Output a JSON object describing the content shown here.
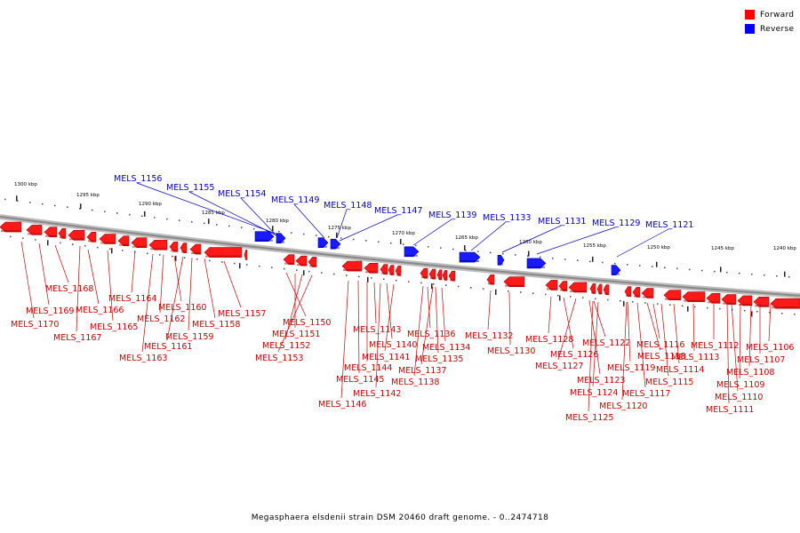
{
  "caption": "Megasphaera elsdenii strain DSM 20460 draft genome. - 0..2474718",
  "legend": [
    {
      "label": "Forward",
      "color": "#ff0000"
    },
    {
      "label": "Reverse",
      "color": "#0000ff"
    }
  ],
  "colors": {
    "forward_label": "#cc0000",
    "reverse_label": "#0000cc",
    "backbone": "#888888"
  },
  "scale_ticks": [
    "1300 kbp",
    "1295 kbp",
    "1290 kbp",
    "1285 kbp",
    "1280 kbp",
    "1275 kbp",
    "1270 kbp",
    "1265 kbp",
    "1260 kbp",
    "1255 kbp",
    "1250 kbp",
    "1245 kbp",
    "1240 kbp"
  ],
  "reverse_genes": [
    "MELS_1156",
    "MELS_1155",
    "MELS_1154",
    "MELS_1149",
    "MELS_1148",
    "MELS_1147",
    "MELS_1139",
    "MELS_1133",
    "MELS_1131",
    "MELS_1129",
    "MELS_1121"
  ],
  "forward_genes": [
    "MELS_1168",
    "MELS_1169",
    "MELS_1170",
    "MELS_1166",
    "MELS_1167",
    "MELS_1164",
    "MELS_1165",
    "MELS_1160",
    "MELS_1162",
    "MELS_1161",
    "MELS_1163",
    "MELS_1159",
    "MELS_1158",
    "MELS_1157",
    "MELS_1150",
    "MELS_1151",
    "MELS_1152",
    "MELS_1153",
    "MELS_1143",
    "MELS_1140",
    "MELS_1141",
    "MELS_1144",
    "MELS_1145",
    "MELS_1142",
    "MELS_1146",
    "MELS_1136",
    "MELS_1134",
    "MELS_1135",
    "MELS_1137",
    "MELS_1138",
    "MELS_1132",
    "MELS_1130",
    "MELS_1128",
    "MELS_1126",
    "MELS_1127",
    "MELS_1122",
    "MELS_1123",
    "MELS_1124",
    "MELS_1125",
    "MELS_1116",
    "MELS_1118",
    "MELS_1119",
    "MELS_1117",
    "MELS_1120",
    "MELS_1112",
    "MELS_1113",
    "MELS_1114",
    "MELS_1115",
    "MELS_1106",
    "MELS_1107",
    "MELS_1108",
    "MELS_1109",
    "MELS_1110",
    "MELS_1111"
  ]
}
